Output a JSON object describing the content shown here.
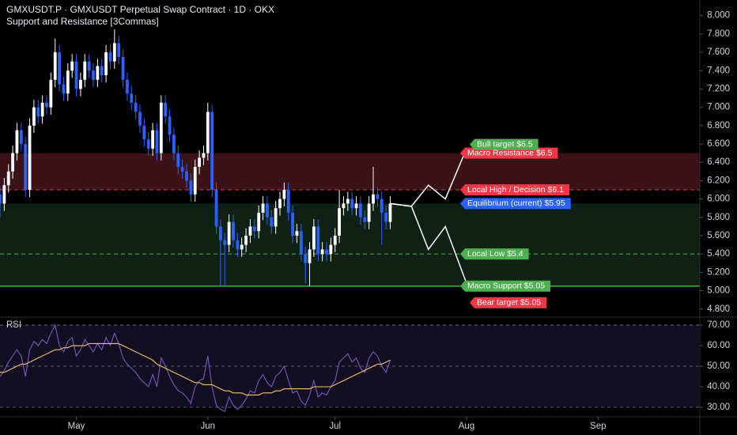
{
  "chart_data": [
    {
      "type": "candlestick",
      "title": "GMXUSDT.P · GMXUSDT Perpetual Swap Contract · 1D · OKX",
      "subtitle": "Support and Resistance [3Commas]",
      "x": [
        0,
        1,
        2,
        3,
        4,
        5,
        6,
        7,
        8,
        9,
        10,
        11,
        12,
        13,
        14,
        15,
        16,
        17,
        18,
        19,
        20,
        21,
        22,
        23,
        24,
        25,
        26,
        27,
        28,
        29,
        30,
        31,
        32,
        33,
        34,
        35,
        36,
        37,
        38,
        39,
        40,
        41,
        42,
        43,
        44,
        45,
        46,
        47,
        48,
        49,
        50,
        51,
        52,
        53,
        54,
        55,
        56,
        57,
        58,
        59,
        60,
        61,
        62,
        63,
        64,
        65,
        66,
        67,
        68,
        69,
        70,
        71,
        72,
        73,
        74,
        75,
        76,
        77,
        78,
        79,
        80,
        81,
        82,
        83,
        84,
        85,
        86,
        87,
        88,
        89,
        90,
        91,
        92
      ],
      "open": [
        6.05,
        5.95,
        6.15,
        6.3,
        6.5,
        6.75,
        6.6,
        6.1,
        6.8,
        7.0,
        6.9,
        7.05,
        7.0,
        7.3,
        7.6,
        7.25,
        7.15,
        7.4,
        7.5,
        7.2,
        7.3,
        7.5,
        7.4,
        7.3,
        7.45,
        7.35,
        7.6,
        7.5,
        7.7,
        7.55,
        7.3,
        7.15,
        7.05,
        6.95,
        6.8,
        6.65,
        6.55,
        6.75,
        6.5,
        7.05,
        6.9,
        6.7,
        6.5,
        6.35,
        6.3,
        6.2,
        6.05,
        6.35,
        6.45,
        6.5,
        6.95,
        6.1,
        5.7,
        5.55,
        5.5,
        5.75,
        5.55,
        5.45,
        5.5,
        5.6,
        5.7,
        5.65,
        5.85,
        5.95,
        5.8,
        5.7,
        5.9,
        6.0,
        6.1,
        5.85,
        5.6,
        5.65,
        5.4,
        5.3,
        5.45,
        5.7,
        5.4,
        5.45,
        5.4,
        5.5,
        5.6,
        5.9,
        5.95,
        6.0,
        5.9,
        5.95,
        5.8,
        5.75,
        5.95,
        6.05,
        6.0,
        5.85,
        5.75
      ],
      "high": [
        6.13,
        6.23,
        6.38,
        6.58,
        6.83,
        6.83,
        6.68,
        6.88,
        7.08,
        7.08,
        7.13,
        7.13,
        7.38,
        7.75,
        7.68,
        7.33,
        7.48,
        7.58,
        7.58,
        7.38,
        7.58,
        7.58,
        7.48,
        7.53,
        7.53,
        7.68,
        7.68,
        7.85,
        7.78,
        7.63,
        7.38,
        7.23,
        7.13,
        7.03,
        6.88,
        6.73,
        6.83,
        6.83,
        7.13,
        7.13,
        6.98,
        6.78,
        6.58,
        6.43,
        6.38,
        6.28,
        6.43,
        6.53,
        6.58,
        7.05,
        7.03,
        6.18,
        5.78,
        5.63,
        5.83,
        5.83,
        5.63,
        5.58,
        5.68,
        5.78,
        5.78,
        5.93,
        6.03,
        6.03,
        5.88,
        5.98,
        6.08,
        6.18,
        6.18,
        5.93,
        5.73,
        5.73,
        5.48,
        5.53,
        5.78,
        5.78,
        5.53,
        5.53,
        5.58,
        5.68,
        6.1,
        6.03,
        6.08,
        6.08,
        6.03,
        6.03,
        5.88,
        6.03,
        6.35,
        6.13,
        6.08,
        5.93,
        6.03
      ],
      "low": [
        5.8,
        5.87,
        6.07,
        6.22,
        6.42,
        6.52,
        6.02,
        6.02,
        6.72,
        6.82,
        6.82,
        6.92,
        6.92,
        7.22,
        7.17,
        7.07,
        7.07,
        7.32,
        7.12,
        7.12,
        7.22,
        7.32,
        7.22,
        7.22,
        7.27,
        7.27,
        7.42,
        7.42,
        7.47,
        7.22,
        7.07,
        6.97,
        6.87,
        6.72,
        6.57,
        6.47,
        6.47,
        6.42,
        6.42,
        6.82,
        6.62,
        6.42,
        6.27,
        6.22,
        6.12,
        5.97,
        5.97,
        6.27,
        6.37,
        6.42,
        6.02,
        5.62,
        5.05,
        5.05,
        5.42,
        5.47,
        5.37,
        5.37,
        5.42,
        5.52,
        5.57,
        5.57,
        5.77,
        5.72,
        5.62,
        5.62,
        5.82,
        5.92,
        5.77,
        5.52,
        5.52,
        5.32,
        5.08,
        5.05,
        5.37,
        5.32,
        5.32,
        5.32,
        5.32,
        5.42,
        5.52,
        5.82,
        5.87,
        5.82,
        5.82,
        5.72,
        5.67,
        5.67,
        5.87,
        5.92,
        5.5,
        5.67,
        5.67
      ],
      "close": [
        5.95,
        6.15,
        6.3,
        6.5,
        6.75,
        6.6,
        6.1,
        6.8,
        7.0,
        6.9,
        7.05,
        7.0,
        7.3,
        7.6,
        7.25,
        7.15,
        7.4,
        7.5,
        7.2,
        7.3,
        7.5,
        7.4,
        7.3,
        7.45,
        7.35,
        7.6,
        7.5,
        7.7,
        7.55,
        7.3,
        7.15,
        7.05,
        6.95,
        6.8,
        6.65,
        6.55,
        6.75,
        6.5,
        7.05,
        6.9,
        6.7,
        6.5,
        6.35,
        6.3,
        6.2,
        6.05,
        6.35,
        6.45,
        6.5,
        6.95,
        6.1,
        5.7,
        5.55,
        5.5,
        5.75,
        5.55,
        5.45,
        5.5,
        5.6,
        5.7,
        5.65,
        5.85,
        5.95,
        5.8,
        5.7,
        5.9,
        6.0,
        6.1,
        5.85,
        5.6,
        5.65,
        5.4,
        5.3,
        5.45,
        5.7,
        5.4,
        5.45,
        5.4,
        5.5,
        5.6,
        5.9,
        5.95,
        6.0,
        5.9,
        5.95,
        5.8,
        5.75,
        5.95,
        6.05,
        6.0,
        5.85,
        5.75,
        5.95
      ],
      "up_color": "#ffffff",
      "down_color": "#2962ff",
      "xlim": [
        0,
        165
      ],
      "xticks": [
        {
          "value": 18,
          "label": "May"
        },
        {
          "value": 49,
          "label": "Jun"
        },
        {
          "value": 79,
          "label": "Jul"
        },
        {
          "value": 110,
          "label": "Aug"
        },
        {
          "value": 141,
          "label": "Sep"
        }
      ],
      "ylim": [
        4.72,
        8.17
      ],
      "yticks": [
        {
          "value": 4.8,
          "label": "4.800"
        },
        {
          "value": 5.0,
          "label": "5.000"
        },
        {
          "value": 5.2,
          "label": "5.200"
        },
        {
          "value": 5.4,
          "label": "5.400"
        },
        {
          "value": 5.6,
          "label": "5.600"
        },
        {
          "value": 5.8,
          "label": "5.800"
        },
        {
          "value": 6.0,
          "label": "6.000"
        },
        {
          "value": 6.2,
          "label": "6.200"
        },
        {
          "value": 6.4,
          "label": "6.400"
        },
        {
          "value": 6.6,
          "label": "6.600"
        },
        {
          "value": 6.8,
          "label": "6.800"
        },
        {
          "value": 7.0,
          "label": "7.000"
        },
        {
          "value": 7.2,
          "label": "7.200"
        },
        {
          "value": 7.4,
          "label": "7.400"
        },
        {
          "value": 7.6,
          "label": "7.600"
        },
        {
          "value": 7.8,
          "label": "7.800"
        },
        {
          "value": 8.0,
          "label": "8.000"
        }
      ],
      "zones": [
        {
          "from": 6.1,
          "to": 6.5,
          "color": "#3a1217"
        },
        {
          "from": 5.05,
          "to": 5.95,
          "color": "#0f2114"
        }
      ],
      "levels": [
        {
          "label": "Macro Resistance $6.5",
          "value": 6.5,
          "color": "#f23645",
          "line": "none"
        },
        {
          "label": "Local High / Decision $6.1",
          "value": 6.1,
          "color": "#f23645",
          "line": "dashed"
        },
        {
          "label": "Equilibrium (current) $5.95",
          "value": 5.95,
          "color": "#2962ff",
          "line": "none"
        },
        {
          "label": "Local Low $5.4",
          "value": 5.4,
          "color": "#4caf50",
          "line": "dashed"
        },
        {
          "label": "Macro Support $5.05",
          "value": 5.05,
          "color": "#4caf50",
          "line": "solid"
        }
      ],
      "targets": [
        {
          "label": "Bull target $6.5",
          "value": 6.5,
          "color": "#4caf50"
        },
        {
          "label": "Bear target $5.05",
          "value": 5.05,
          "color": "#f23645"
        }
      ],
      "projections": [
        {
          "x": [
            92,
            97,
            101,
            105,
            110
          ],
          "y": [
            5.95,
            5.92,
            6.15,
            6.0,
            6.55
          ]
        },
        {
          "x": [
            92,
            97,
            101,
            105,
            110
          ],
          "y": [
            5.95,
            5.92,
            5.45,
            5.7,
            5.08
          ]
        }
      ]
    },
    {
      "type": "line",
      "title": "RSI",
      "ylim": [
        22.3,
        73.1
      ],
      "yticks": [
        {
          "value": 30,
          "label": "30.00"
        },
        {
          "value": 40,
          "label": "40.00"
        },
        {
          "value": 50,
          "label": "50.00"
        },
        {
          "value": 60,
          "label": "60.00"
        },
        {
          "value": 70,
          "label": "70.00"
        }
      ],
      "series": [
        {
          "name": "RSI",
          "color": "#7e57c2",
          "values": [
            45,
            48,
            52,
            55,
            58,
            55,
            45,
            58,
            62,
            60,
            63,
            61,
            66,
            70,
            60,
            57,
            62,
            64,
            55,
            58,
            63,
            60,
            57,
            61,
            58,
            64,
            60,
            66,
            61,
            54,
            51,
            49,
            47,
            44,
            42,
            40,
            46,
            40,
            54,
            50,
            45,
            41,
            38,
            37,
            35,
            32,
            40,
            43,
            44,
            55,
            40,
            31,
            29,
            28,
            35,
            31,
            29,
            31,
            34,
            38,
            37,
            43,
            46,
            42,
            40,
            45,
            47,
            50,
            43,
            37,
            38,
            33,
            31,
            36,
            43,
            35,
            37,
            36,
            40,
            43,
            52,
            54,
            56,
            52,
            54,
            49,
            47,
            54,
            57,
            55,
            50,
            47,
            53
          ]
        },
        {
          "name": "MA",
          "color": "#f5c26b",
          "values": [
            47,
            47,
            48,
            49,
            50,
            51,
            51,
            52,
            53,
            54,
            55,
            56,
            57,
            58,
            58,
            59,
            59,
            60,
            60,
            60,
            60,
            61,
            61,
            61,
            61,
            61,
            61,
            61,
            61,
            60,
            59,
            58,
            57,
            56,
            55,
            54,
            53,
            51,
            50,
            49,
            48,
            47,
            46,
            45,
            44,
            43,
            42,
            42,
            41,
            41,
            41,
            40,
            39,
            38,
            38,
            37,
            37,
            37,
            36,
            36,
            36,
            36,
            37,
            37,
            37,
            38,
            38,
            39,
            39,
            39,
            39,
            39,
            39,
            39,
            40,
            40,
            40,
            40,
            40,
            41,
            42,
            43,
            44,
            45,
            46,
            47,
            48,
            49,
            50,
            51,
            51,
            52,
            53
          ]
        }
      ]
    }
  ]
}
